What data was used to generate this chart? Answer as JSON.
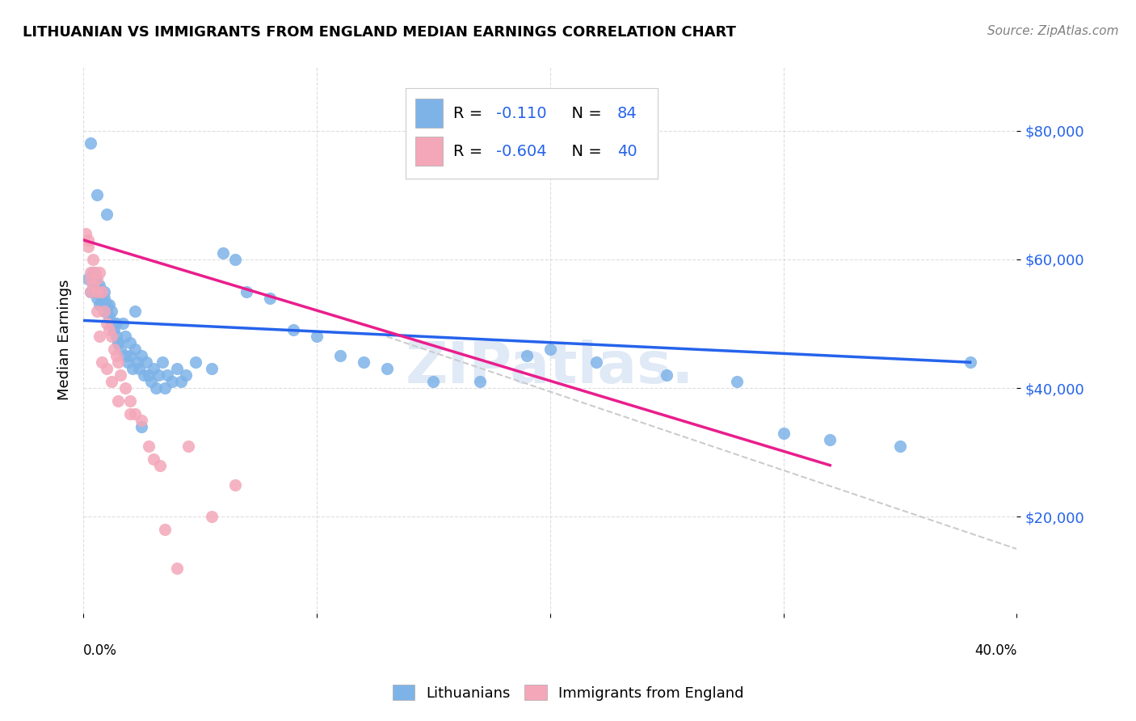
{
  "title": "LITHUANIAN VS IMMIGRANTS FROM ENGLAND MEDIAN EARNINGS CORRELATION CHART",
  "source": "Source: ZipAtlas.com",
  "ylabel": "Median Earnings",
  "yticks": [
    20000,
    40000,
    60000,
    80000
  ],
  "ytick_labels": [
    "$20,000",
    "$40,000",
    "$60,000",
    "$80,000"
  ],
  "xlim": [
    0.0,
    0.4
  ],
  "ylim": [
    5000,
    90000
  ],
  "blue_color": "#7eb3e8",
  "pink_color": "#f4a7b9",
  "blue_line_color": "#2563eb",
  "pink_line_color": "#e91e8c",
  "dashed_line_color": "#cccccc",
  "legend_R1": "-0.110",
  "legend_N1": "84",
  "legend_R2": "-0.604",
  "legend_N2": "40",
  "watermark": "ZIPatlas.",
  "blue_scatter_x": [
    0.002,
    0.003,
    0.004,
    0.004,
    0.005,
    0.005,
    0.005,
    0.006,
    0.006,
    0.006,
    0.007,
    0.007,
    0.007,
    0.008,
    0.008,
    0.008,
    0.009,
    0.009,
    0.009,
    0.01,
    0.01,
    0.011,
    0.011,
    0.012,
    0.012,
    0.013,
    0.013,
    0.014,
    0.014,
    0.015,
    0.016,
    0.017,
    0.018,
    0.018,
    0.019,
    0.02,
    0.021,
    0.022,
    0.023,
    0.024,
    0.025,
    0.026,
    0.027,
    0.028,
    0.029,
    0.03,
    0.031,
    0.032,
    0.034,
    0.035,
    0.036,
    0.038,
    0.04,
    0.042,
    0.044,
    0.048,
    0.055,
    0.06,
    0.065,
    0.07,
    0.08,
    0.09,
    0.1,
    0.11,
    0.12,
    0.13,
    0.15,
    0.17,
    0.2,
    0.22,
    0.25,
    0.28,
    0.3,
    0.32,
    0.35,
    0.38,
    0.003,
    0.006,
    0.01,
    0.015,
    0.02,
    0.022,
    0.025,
    0.19
  ],
  "blue_scatter_y": [
    57000,
    55000,
    56000,
    58000,
    55000,
    56000,
    57000,
    55000,
    54000,
    56000,
    53000,
    55000,
    56000,
    54000,
    55000,
    53000,
    52000,
    54000,
    55000,
    53000,
    52000,
    51000,
    53000,
    50000,
    52000,
    49000,
    50000,
    48000,
    50000,
    47000,
    46000,
    50000,
    48000,
    45000,
    44000,
    45000,
    43000,
    46000,
    44000,
    43000,
    45000,
    42000,
    44000,
    42000,
    41000,
    43000,
    40000,
    42000,
    44000,
    40000,
    42000,
    41000,
    43000,
    41000,
    42000,
    44000,
    43000,
    61000,
    60000,
    55000,
    54000,
    49000,
    48000,
    45000,
    44000,
    43000,
    41000,
    41000,
    46000,
    44000,
    42000,
    41000,
    33000,
    32000,
    31000,
    44000,
    78000,
    70000,
    67000,
    47000,
    47000,
    52000,
    34000,
    45000
  ],
  "pink_scatter_x": [
    0.001,
    0.002,
    0.003,
    0.003,
    0.004,
    0.005,
    0.006,
    0.006,
    0.007,
    0.008,
    0.009,
    0.01,
    0.011,
    0.012,
    0.013,
    0.014,
    0.015,
    0.016,
    0.018,
    0.02,
    0.022,
    0.025,
    0.028,
    0.03,
    0.033,
    0.035,
    0.04,
    0.045,
    0.055,
    0.065,
    0.002,
    0.003,
    0.004,
    0.006,
    0.007,
    0.008,
    0.01,
    0.012,
    0.015,
    0.02
  ],
  "pink_scatter_y": [
    64000,
    62000,
    58000,
    55000,
    60000,
    58000,
    57000,
    55000,
    58000,
    55000,
    52000,
    50000,
    49000,
    48000,
    46000,
    45000,
    44000,
    42000,
    40000,
    38000,
    36000,
    35000,
    31000,
    29000,
    28000,
    18000,
    12000,
    31000,
    20000,
    25000,
    63000,
    57000,
    56000,
    52000,
    48000,
    44000,
    43000,
    41000,
    38000,
    36000
  ],
  "blue_line_x": [
    0.0,
    0.38
  ],
  "blue_line_y": [
    50500,
    44000
  ],
  "pink_line_x": [
    0.0,
    0.32
  ],
  "pink_line_y": [
    63000,
    28000
  ],
  "dash_line_x": [
    0.13,
    0.4
  ],
  "dash_line_y": [
    48000,
    15000
  ]
}
